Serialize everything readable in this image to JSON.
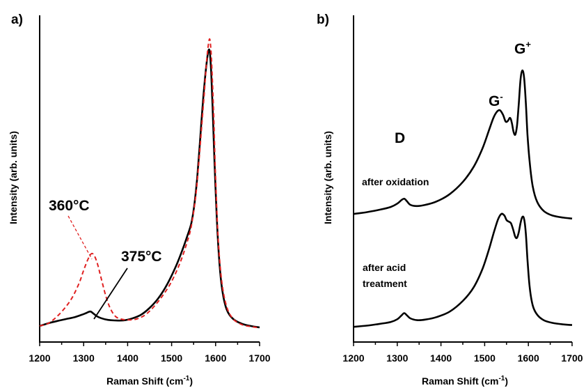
{
  "chart_data": [
    {
      "type": "line",
      "panel_label": "a)",
      "xlabel": "Raman Shift (cm",
      "xlabel_sup": "-1",
      "xlabel_close": ")",
      "ylabel": "Intensity (arb. units)",
      "xlim": [
        1200,
        1700
      ],
      "ylim": [
        0,
        1.08
      ],
      "xticks": [
        "1200",
        "1300",
        "1400",
        "1500",
        "1600",
        "1700"
      ],
      "series": [
        {
          "name": "375°C",
          "color": "#000000",
          "dash": "solid",
          "x": [
            1200,
            1220,
            1240,
            1260,
            1280,
            1295,
            1305,
            1315,
            1322,
            1330,
            1340,
            1355,
            1370,
            1390,
            1410,
            1430,
            1450,
            1470,
            1490,
            1510,
            1525,
            1535,
            1545,
            1552,
            1558,
            1563,
            1568,
            1572,
            1576,
            1580,
            1584,
            1587,
            1590,
            1593,
            1597,
            1602,
            1608,
            1615,
            1625,
            1640,
            1660,
            1680,
            1700
          ],
          "y": [
            0.01,
            0.02,
            0.028,
            0.035,
            0.042,
            0.05,
            0.056,
            0.062,
            0.055,
            0.045,
            0.038,
            0.032,
            0.03,
            0.03,
            0.037,
            0.05,
            0.075,
            0.11,
            0.16,
            0.225,
            0.285,
            0.33,
            0.38,
            0.45,
            0.54,
            0.64,
            0.75,
            0.83,
            0.9,
            0.96,
            1.0,
            0.99,
            0.92,
            0.8,
            0.62,
            0.42,
            0.25,
            0.14,
            0.07,
            0.035,
            0.018,
            0.01,
            0.005
          ]
        },
        {
          "name": "360°C",
          "color": "#e02020",
          "dash": "dashed",
          "x": [
            1200,
            1220,
            1240,
            1260,
            1275,
            1290,
            1300,
            1310,
            1318,
            1325,
            1332,
            1340,
            1350,
            1360,
            1372,
            1385,
            1400,
            1420,
            1440,
            1460,
            1480,
            1500,
            1520,
            1535,
            1545,
            1555,
            1562,
            1568,
            1574,
            1578,
            1582,
            1586,
            1589,
            1592,
            1596,
            1600,
            1606,
            1614,
            1625,
            1640,
            1660,
            1680,
            1700
          ],
          "y": [
            0.01,
            0.02,
            0.045,
            0.08,
            0.115,
            0.165,
            0.21,
            0.25,
            0.27,
            0.26,
            0.23,
            0.18,
            0.12,
            0.075,
            0.045,
            0.035,
            0.032,
            0.035,
            0.05,
            0.08,
            0.12,
            0.17,
            0.24,
            0.31,
            0.37,
            0.48,
            0.6,
            0.72,
            0.84,
            0.93,
            1.0,
            1.04,
            1.01,
            0.92,
            0.75,
            0.54,
            0.32,
            0.17,
            0.08,
            0.035,
            0.015,
            0.008,
            0.004
          ]
        }
      ],
      "annotations": [
        "360°C",
        "375°C"
      ]
    },
    {
      "type": "line",
      "panel_label": "b)",
      "xlabel": "Raman Shift (cm",
      "xlabel_sup": "-1",
      "xlabel_close": ")",
      "ylabel": "Intensity (arb. units)",
      "xlim": [
        1200,
        1700
      ],
      "ylim": [
        0,
        1.0
      ],
      "xticks": [
        "1200",
        "1300",
        "1400",
        "1500",
        "1600",
        "1700"
      ],
      "series": [
        {
          "name": "after oxidation",
          "color": "#000000",
          "dash": "solid",
          "x": [
            1200,
            1230,
            1260,
            1285,
            1300,
            1310,
            1316,
            1322,
            1330,
            1345,
            1365,
            1390,
            1420,
            1450,
            1475,
            1495,
            1510,
            1520,
            1528,
            1535,
            1542,
            1548,
            1553,
            1558,
            1562,
            1566,
            1570,
            1574,
            1578,
            1582,
            1586,
            1590,
            1594,
            1598,
            1603,
            1610,
            1620,
            1635,
            1655,
            1680,
            1700
          ],
          "y": [
            0.39,
            0.396,
            0.404,
            0.413,
            0.424,
            0.436,
            0.44,
            0.432,
            0.42,
            0.416,
            0.42,
            0.431,
            0.455,
            0.495,
            0.545,
            0.605,
            0.665,
            0.705,
            0.725,
            0.73,
            0.715,
            0.693,
            0.695,
            0.705,
            0.69,
            0.66,
            0.65,
            0.68,
            0.75,
            0.83,
            0.86,
            0.84,
            0.76,
            0.65,
            0.56,
            0.48,
            0.43,
            0.4,
            0.385,
            0.378,
            0.375
          ]
        },
        {
          "name": "after acid treatment",
          "color": "#000000",
          "dash": "solid",
          "x": [
            1200,
            1230,
            1260,
            1285,
            1300,
            1310,
            1316,
            1322,
            1330,
            1345,
            1365,
            1390,
            1420,
            1450,
            1475,
            1495,
            1510,
            1520,
            1530,
            1538,
            1545,
            1550,
            1555,
            1560,
            1565,
            1570,
            1574,
            1578,
            1582,
            1586,
            1590,
            1594,
            1598,
            1603,
            1610,
            1620,
            1635,
            1655,
            1680,
            1700
          ],
          "y": [
            0.02,
            0.024,
            0.03,
            0.036,
            0.045,
            0.058,
            0.065,
            0.058,
            0.048,
            0.042,
            0.044,
            0.052,
            0.07,
            0.105,
            0.15,
            0.21,
            0.275,
            0.325,
            0.37,
            0.39,
            0.385,
            0.37,
            0.365,
            0.36,
            0.34,
            0.315,
            0.312,
            0.33,
            0.36,
            0.38,
            0.375,
            0.33,
            0.24,
            0.15,
            0.09,
            0.06,
            0.042,
            0.033,
            0.028,
            0.026
          ]
        }
      ],
      "annotations": [
        "D",
        "G",
        "-",
        "G",
        "+",
        "after oxidation",
        "after acid",
        "treatment"
      ]
    }
  ]
}
